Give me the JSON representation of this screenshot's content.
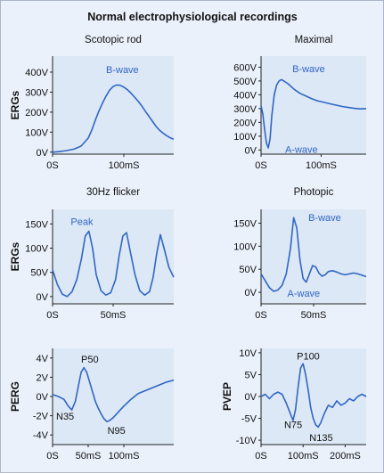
{
  "figure_title": "Normal electrophysiological recordings",
  "chart_data": [
    {
      "id": "scotopic",
      "type": "line",
      "title": "Scotopic rod",
      "row_label": "ERGs",
      "ylim": [
        -10,
        480
      ],
      "xlim": [
        0,
        170
      ],
      "yticks": [
        {
          "v": 0,
          "label": "0V"
        },
        {
          "v": 100,
          "label": "100V"
        },
        {
          "v": 200,
          "label": "200V"
        },
        {
          "v": 300,
          "label": "300V"
        },
        {
          "v": 400,
          "label": "400V"
        }
      ],
      "xticks": [
        {
          "v": 0,
          "label": "0S"
        },
        {
          "v": 100,
          "label": "100mS"
        }
      ],
      "annotations": [
        {
          "text": "B-wave",
          "x": 75,
          "y": 395,
          "dark": false
        }
      ],
      "series": [
        {
          "x": [
            0,
            10,
            20,
            30,
            40,
            50,
            55,
            60,
            65,
            70,
            75,
            80,
            85,
            90,
            95,
            100,
            105,
            110,
            115,
            120,
            125,
            130,
            135,
            140,
            145,
            150,
            155,
            160,
            165,
            170
          ],
          "y": [
            0,
            3,
            8,
            15,
            30,
            70,
            110,
            160,
            205,
            245,
            280,
            310,
            328,
            336,
            334,
            325,
            312,
            295,
            275,
            255,
            232,
            205,
            180,
            155,
            130,
            110,
            95,
            82,
            72,
            65
          ]
        }
      ]
    },
    {
      "id": "maximal",
      "type": "line",
      "title": "Maximal",
      "ylim": [
        -30,
        680
      ],
      "xlim": [
        0,
        175
      ],
      "yticks": [
        {
          "v": 0,
          "label": "0V"
        },
        {
          "v": 100,
          "label": "100V"
        },
        {
          "v": 200,
          "label": "200V"
        },
        {
          "v": 300,
          "label": "300V"
        },
        {
          "v": 400,
          "label": "400V"
        },
        {
          "v": 500,
          "label": "500V"
        },
        {
          "v": 600,
          "label": "600V"
        }
      ],
      "xticks": [
        {
          "v": 0,
          "label": "0S"
        },
        {
          "v": 100,
          "label": "100mS"
        }
      ],
      "annotations": [
        {
          "text": "B-wave",
          "x": 52,
          "y": 565,
          "dark": false
        },
        {
          "text": "A-wave",
          "x": 40,
          "y": -20,
          "dark": false
        }
      ],
      "series": [
        {
          "x": [
            0,
            3,
            6,
            9,
            12,
            15,
            18,
            22,
            26,
            30,
            34,
            38,
            45,
            55,
            65,
            75,
            85,
            95,
            105,
            115,
            125,
            135,
            145,
            155,
            165,
            175
          ],
          "y": [
            320,
            260,
            150,
            50,
            15,
            80,
            250,
            400,
            470,
            500,
            510,
            500,
            480,
            440,
            410,
            390,
            370,
            355,
            345,
            335,
            325,
            315,
            308,
            302,
            298,
            300
          ]
        }
      ]
    },
    {
      "id": "flicker",
      "type": "line",
      "title": "30Hz flicker",
      "row_label": "ERGs",
      "ylim": [
        -15,
        180
      ],
      "xlim": [
        0,
        100
      ],
      "yticks": [
        {
          "v": 0,
          "label": "0V"
        },
        {
          "v": 50,
          "label": "50V"
        },
        {
          "v": 100,
          "label": "100V"
        },
        {
          "v": 150,
          "label": "150V"
        }
      ],
      "xticks": [
        {
          "v": 0,
          "label": "0S"
        },
        {
          "v": 50,
          "label": "50mS"
        }
      ],
      "annotations": [
        {
          "text": "Peak",
          "x": 15,
          "y": 148,
          "dark": false
        }
      ],
      "series": [
        {
          "x": [
            0,
            4,
            8,
            12,
            16,
            20,
            24,
            27,
            30,
            33,
            36,
            40,
            44,
            48,
            52,
            55,
            58,
            61,
            64,
            68,
            72,
            76,
            80,
            83,
            86,
            89,
            92,
            96,
            100
          ],
          "y": [
            55,
            25,
            5,
            0,
            10,
            35,
            80,
            125,
            135,
            100,
            45,
            12,
            3,
            8,
            35,
            85,
            125,
            132,
            95,
            45,
            12,
            3,
            10,
            40,
            90,
            128,
            100,
            60,
            40
          ]
        }
      ]
    },
    {
      "id": "photopic",
      "type": "line",
      "title": "Photopic",
      "ylim": [
        -25,
        180
      ],
      "xlim": [
        0,
        100
      ],
      "yticks": [
        {
          "v": 0,
          "label": "0V"
        },
        {
          "v": 50,
          "label": "50V"
        },
        {
          "v": 100,
          "label": "100V"
        },
        {
          "v": 150,
          "label": "150V"
        }
      ],
      "xticks": [
        {
          "v": 0,
          "label": "0S"
        },
        {
          "v": 50,
          "label": "50mS"
        }
      ],
      "annotations": [
        {
          "text": "B-wave",
          "x": 45,
          "y": 155,
          "dark": false
        },
        {
          "text": "A-wave",
          "x": 25,
          "y": -10,
          "dark": false
        }
      ],
      "series": [
        {
          "x": [
            0,
            4,
            8,
            12,
            16,
            20,
            24,
            28,
            31,
            34,
            37,
            40,
            43,
            46,
            49,
            52,
            55,
            58,
            61,
            64,
            68,
            72,
            76,
            80,
            84,
            88,
            92,
            96,
            100
          ],
          "y": [
            40,
            25,
            10,
            2,
            5,
            15,
            40,
            95,
            162,
            140,
            70,
            30,
            22,
            40,
            58,
            55,
            42,
            35,
            38,
            45,
            47,
            44,
            40,
            38,
            40,
            42,
            40,
            37,
            34
          ]
        }
      ]
    },
    {
      "id": "perg",
      "type": "line",
      "row_label": "PERG",
      "ylim": [
        -5,
        5
      ],
      "xlim": [
        0,
        170
      ],
      "yticks": [
        {
          "v": -4,
          "label": "-4V"
        },
        {
          "v": -2,
          "label": "-2V"
        },
        {
          "v": 0,
          "label": "0V"
        },
        {
          "v": 2,
          "label": "2V"
        },
        {
          "v": 4,
          "label": "4V"
        }
      ],
      "xticks": [
        {
          "v": 0,
          "label": "0S"
        },
        {
          "v": 50,
          "label": "50mS"
        },
        {
          "v": 100,
          "label": "100mS"
        }
      ],
      "annotations": [
        {
          "text": "P50",
          "x": 40,
          "y": 3.5,
          "dark": true
        },
        {
          "text": "N35",
          "x": 5,
          "y": -2.4,
          "dark": true
        },
        {
          "text": "N95",
          "x": 77,
          "y": -3.9,
          "dark": true
        }
      ],
      "series": [
        {
          "x": [
            0,
            8,
            16,
            22,
            27,
            32,
            36,
            40,
            44,
            48,
            52,
            56,
            60,
            64,
            68,
            72,
            76,
            80,
            85,
            90,
            95,
            100,
            110,
            120,
            130,
            140,
            150,
            160,
            170
          ],
          "y": [
            0.2,
            0,
            -0.3,
            -1.0,
            -1.4,
            -0.5,
            1.0,
            2.5,
            3.0,
            2.5,
            1.5,
            0.5,
            -0.5,
            -1.2,
            -1.8,
            -2.3,
            -2.6,
            -2.5,
            -2.2,
            -1.8,
            -1.4,
            -1.0,
            -0.3,
            0.3,
            0.6,
            0.9,
            1.2,
            1.5,
            1.7
          ]
        }
      ]
    },
    {
      "id": "pvep",
      "type": "line",
      "row_label": "PVEP",
      "ylim": [
        -11,
        11
      ],
      "xlim": [
        0,
        250
      ],
      "yticks": [
        {
          "v": -10,
          "label": "-10V"
        },
        {
          "v": -5,
          "label": "-5V"
        },
        {
          "v": 0,
          "label": "0V"
        },
        {
          "v": 5,
          "label": "5V"
        },
        {
          "v": 10,
          "label": "10V"
        }
      ],
      "xticks": [
        {
          "v": 0,
          "label": "0S"
        },
        {
          "v": 100,
          "label": "100mS"
        },
        {
          "v": 200,
          "label": "200mS"
        }
      ],
      "annotations": [
        {
          "text": "P100",
          "x": 85,
          "y": 8.5,
          "dark": true
        },
        {
          "text": "N75",
          "x": 55,
          "y": -7.2,
          "dark": true
        },
        {
          "text": "N135",
          "x": 115,
          "y": -10.2,
          "dark": true
        }
      ],
      "series": [
        {
          "x": [
            0,
            10,
            20,
            30,
            40,
            50,
            60,
            70,
            76,
            82,
            88,
            94,
            100,
            106,
            112,
            118,
            124,
            130,
            136,
            142,
            150,
            160,
            170,
            180,
            190,
            200,
            210,
            220,
            230,
            240,
            250
          ],
          "y": [
            0,
            0.5,
            -0.5,
            0.5,
            1.0,
            0.5,
            -1.5,
            -4.0,
            -5.5,
            -3.0,
            2.0,
            6.5,
            7.5,
            5.0,
            1.5,
            -2.5,
            -5.0,
            -6.5,
            -7.0,
            -6.0,
            -4.0,
            -2.0,
            -2.5,
            -1.0,
            -2.0,
            -1.5,
            -0.5,
            -1.0,
            0.0,
            0.5,
            0.0
          ]
        }
      ]
    }
  ]
}
